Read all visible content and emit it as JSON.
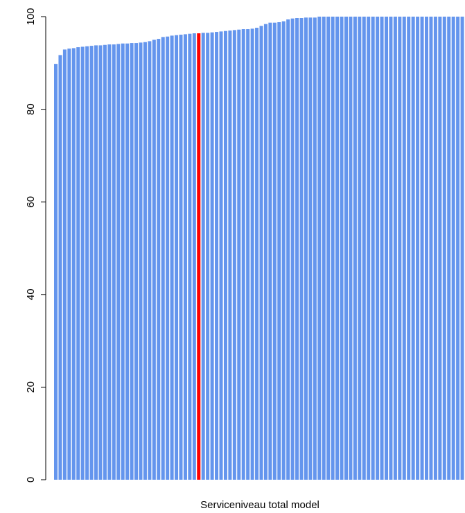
{
  "chart_data": {
    "type": "bar",
    "xlabel": "Serviceniveau total model",
    "values": [
      89.8,
      91.7,
      92.9,
      93.1,
      93.2,
      93.4,
      93.5,
      93.6,
      93.7,
      93.8,
      93.8,
      93.9,
      94.0,
      94.0,
      94.1,
      94.2,
      94.2,
      94.3,
      94.3,
      94.4,
      94.5,
      94.7,
      95.0,
      95.2,
      95.6,
      95.7,
      95.9,
      96.0,
      96.1,
      96.2,
      96.3,
      96.4,
      96.4,
      96.5,
      96.5,
      96.6,
      96.7,
      96.8,
      96.9,
      97.0,
      97.1,
      97.2,
      97.3,
      97.3,
      97.4,
      97.6,
      98.0,
      98.4,
      98.7,
      98.7,
      98.8,
      99.0,
      99.4,
      99.6,
      99.7,
      99.7,
      99.8,
      99.8,
      99.8,
      100,
      100,
      100,
      100,
      100,
      100,
      100,
      100,
      100,
      100,
      100,
      100,
      100,
      100,
      100,
      100,
      100,
      100,
      100,
      100,
      100,
      100,
      100,
      100,
      100,
      100,
      100,
      100,
      100,
      100,
      100,
      100,
      100
    ],
    "color": "#6495ed",
    "highlight": {
      "index": 32,
      "color": "#ff0000"
    },
    "ylim": [
      0,
      100
    ],
    "yticks": [
      0,
      20,
      40,
      60,
      80,
      100
    ]
  }
}
